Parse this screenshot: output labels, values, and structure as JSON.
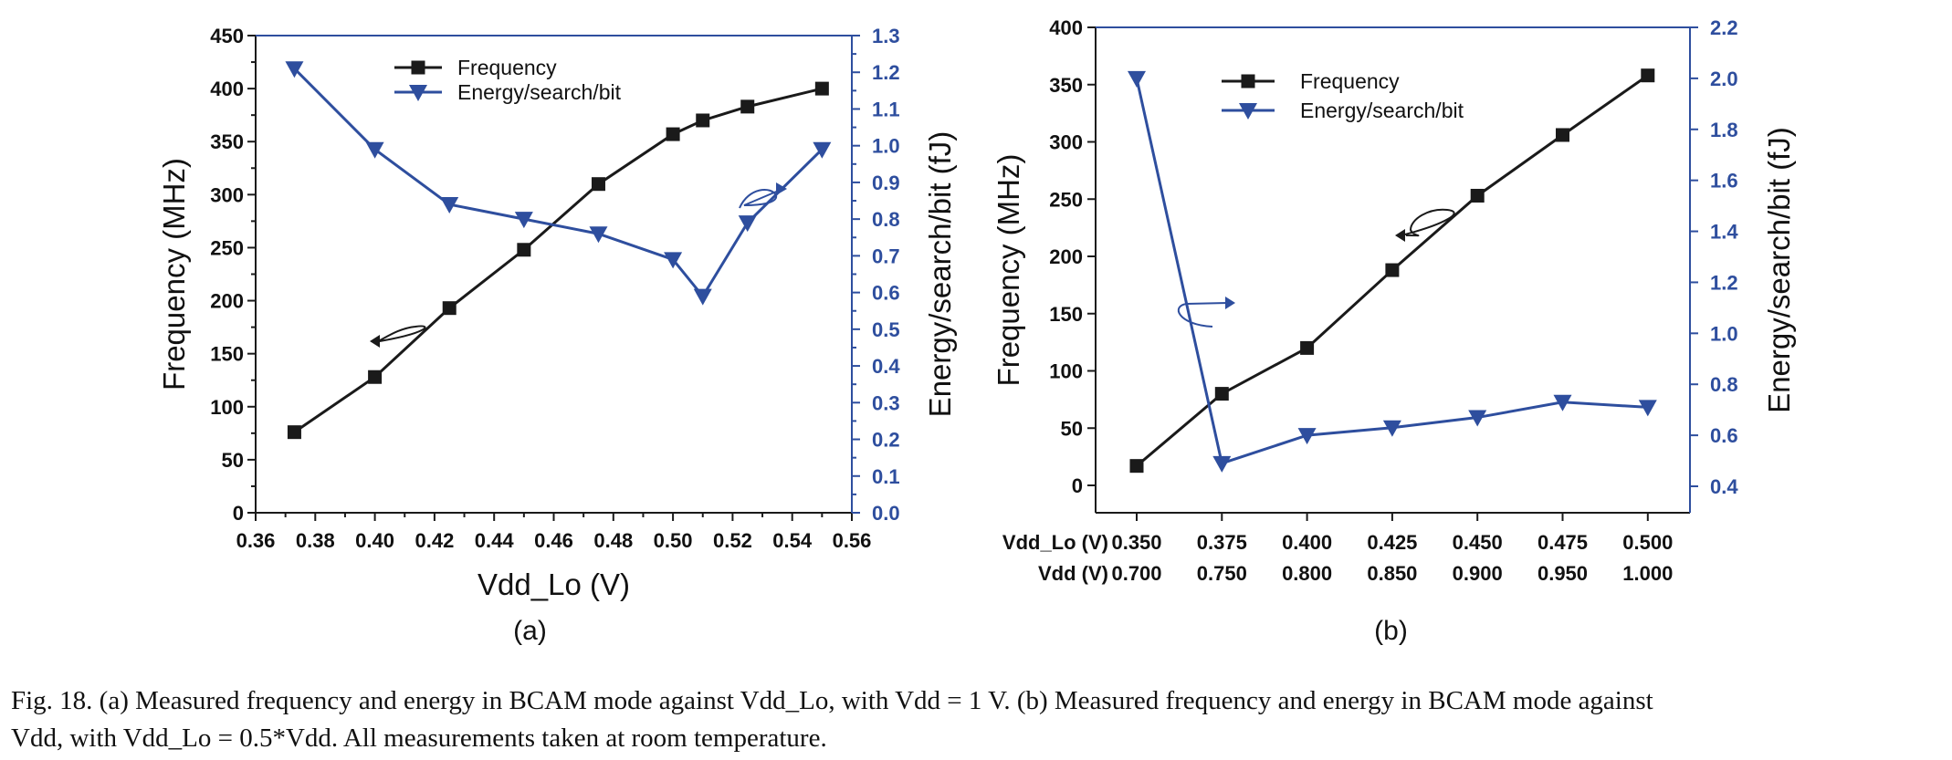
{
  "colors": {
    "frequency": "#1a1a1a",
    "energy": "#2e4e9e",
    "axis_left": "#1a1a1a",
    "axis_right": "#2e4e9e"
  },
  "caption": {
    "line1": "Fig. 18. (a) Measured frequency and energy in BCAM mode against Vdd_Lo, with Vdd = 1 V. (b) Measured frequency and energy in BCAM mode against",
    "line2": "Vdd, with Vdd_Lo = 0.5*Vdd. All measurements taken at room temperature."
  },
  "chart_data": [
    {
      "type": "line",
      "panel_label": "(a)",
      "xlabel": "Vdd_Lo (V)",
      "ylabel": "Frequency (MHz)",
      "y2label": "Energy/search/bit (fJ)",
      "xlim": [
        0.36,
        0.56
      ],
      "ylim": [
        0,
        450
      ],
      "y2lim": [
        0.0,
        1.3
      ],
      "x_ticks": [
        "0.36",
        "0.38",
        "0.40",
        "0.42",
        "0.44",
        "0.46",
        "0.48",
        "0.50",
        "0.52",
        "0.54",
        "0.56"
      ],
      "y_ticks": [
        "0",
        "50",
        "100",
        "150",
        "200",
        "250",
        "300",
        "350",
        "400",
        "450"
      ],
      "y2_ticks": [
        "0.0",
        "0.1",
        "0.2",
        "0.3",
        "0.4",
        "0.5",
        "0.6",
        "0.7",
        "0.8",
        "0.9",
        "1.0",
        "1.1",
        "1.2",
        "1.3"
      ],
      "legend": {
        "position": "top-center",
        "entries": [
          "Frequency",
          "Energy/search/bit"
        ]
      },
      "series": [
        {
          "name": "Frequency",
          "axis": "left",
          "marker": "square",
          "x": [
            0.373,
            0.4,
            0.425,
            0.45,
            0.475,
            0.5,
            0.51,
            0.525,
            0.55
          ],
          "values": [
            76,
            128,
            193,
            248,
            310,
            357,
            370,
            383,
            400
          ]
        },
        {
          "name": "Energy/search/bit",
          "axis": "right",
          "marker": "triangle-down",
          "x": [
            0.373,
            0.4,
            0.425,
            0.45,
            0.475,
            0.5,
            0.51,
            0.525,
            0.55
          ],
          "values": [
            1.21,
            0.99,
            0.84,
            0.8,
            0.76,
            0.69,
            0.59,
            0.79,
            0.99
          ]
        }
      ]
    },
    {
      "type": "line",
      "panel_label": "(b)",
      "ylabel": "Frequency (MHz)",
      "y2label": "Energy/search/bit (fJ)",
      "ylim": [
        0,
        400
      ],
      "y2lim": [
        0.4,
        2.2
      ],
      "y_ticks": [
        "0",
        "50",
        "100",
        "150",
        "200",
        "250",
        "300",
        "350",
        "400"
      ],
      "y2_ticks": [
        "0.4",
        "0.6",
        "0.8",
        "1.0",
        "1.2",
        "1.4",
        "1.6",
        "1.8",
        "2.0",
        "2.2"
      ],
      "row_labels": [
        "Vdd_Lo (V)",
        "Vdd (V)"
      ],
      "categories_vdd_lo": [
        "0.350",
        "0.375",
        "0.400",
        "0.425",
        "0.450",
        "0.475",
        "0.500"
      ],
      "categories_vdd": [
        "0.700",
        "0.750",
        "0.800",
        "0.850",
        "0.900",
        "0.950",
        "1.000"
      ],
      "legend": {
        "position": "top-center",
        "entries": [
          "Frequency",
          "Energy/search/bit"
        ]
      },
      "series": [
        {
          "name": "Frequency",
          "axis": "left",
          "marker": "square",
          "values": [
            17,
            80,
            120,
            188,
            253,
            306,
            358
          ]
        },
        {
          "name": "Energy/search/bit",
          "axis": "right",
          "marker": "triangle-down",
          "values": [
            2.0,
            0.49,
            0.6,
            0.63,
            0.67,
            0.73,
            0.71
          ]
        }
      ]
    }
  ]
}
